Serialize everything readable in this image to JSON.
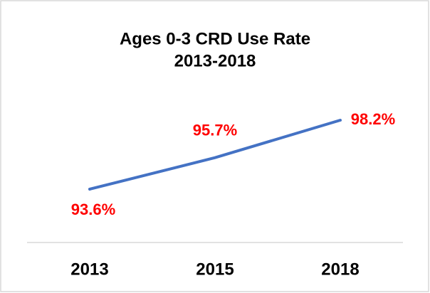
{
  "chart_data": {
    "type": "line",
    "title": "Ages 0-3 CRD Use Rate",
    "subtitle": "2013-2018",
    "categories": [
      "2013",
      "2015",
      "2018"
    ],
    "values": [
      93.6,
      95.7,
      98.2
    ],
    "value_labels": [
      "93.6%",
      "95.7%",
      "98.2%"
    ],
    "color": "#4472c4",
    "label_color": "#ff0000"
  }
}
